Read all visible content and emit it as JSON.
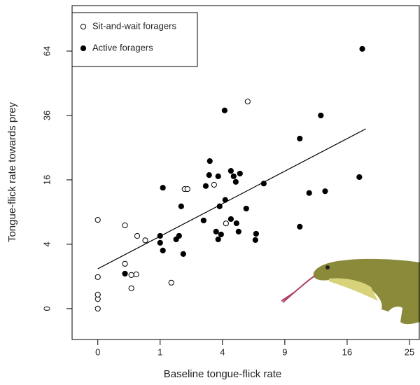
{
  "chart_data": {
    "type": "scatter",
    "scale": "sqrt",
    "xlabel": "Baseline tongue-flick rate",
    "ylabel": "Tongue-flick rate towards prey",
    "xlim": [
      -0.17,
      26.6
    ],
    "ylim": [
      -0.92,
      88.6
    ],
    "xticks": [
      0,
      1,
      4,
      9,
      16,
      25
    ],
    "yticks": [
      0,
      4,
      16,
      36,
      64
    ],
    "legend": "top-left",
    "series": [
      {
        "name": "Sit-and-wait foragers",
        "color": "#000000",
        "filled": false,
        "x": [
          0,
          0,
          0,
          0,
          0,
          0.19,
          0.4,
          0.58,
          0.19,
          0.29,
          0.38,
          0.29,
          1.39,
          1.94,
          2.07,
          3.48,
          4.23,
          5.78
        ],
        "y": [
          0,
          0.09,
          0.19,
          0.96,
          7.6,
          6.7,
          5.1,
          4.5,
          1.94,
          1.09,
          1.13,
          0.4,
          0.65,
          13.8,
          13.8,
          14.8,
          7.0,
          41.4
        ]
      },
      {
        "name": "Active foragers",
        "color": "#000000",
        "filled": true,
        "x": [
          18.0,
          4.14,
          12.8,
          10.5,
          3.23,
          4.56,
          3.19,
          3.73,
          4.75,
          5.2,
          4.9,
          3.0,
          1.09,
          7.09,
          17.6,
          11.5,
          13.3,
          4.18,
          3.82,
          5.67,
          1.79,
          4.56,
          4.95,
          2.88,
          5.1,
          3.6,
          10.5,
          6.45,
          3.73,
          6.39,
          3.91,
          1.0,
          1.0,
          1.7,
          1.58,
          1.09,
          1.88,
          0.19
        ],
        "y": [
          65.1,
          37.9,
          36.0,
          27.9,
          21.0,
          18.3,
          17.2,
          16.9,
          16.9,
          17.6,
          15.5,
          14.5,
          14.1,
          15.1,
          16.7,
          12.9,
          13.3,
          11.4,
          10.1,
          9.66,
          10.1,
          7.74,
          7.03,
          7.5,
          5.72,
          5.72,
          6.47,
          5.41,
          4.63,
          4.54,
          5.31,
          5.11,
          4.18,
          5.11,
          4.63,
          3.26,
          2.88,
          1.18
        ]
      }
    ],
    "trend_line": {
      "x": [
        0,
        18.5
      ],
      "y": [
        1.53,
        31.2
      ]
    }
  }
}
